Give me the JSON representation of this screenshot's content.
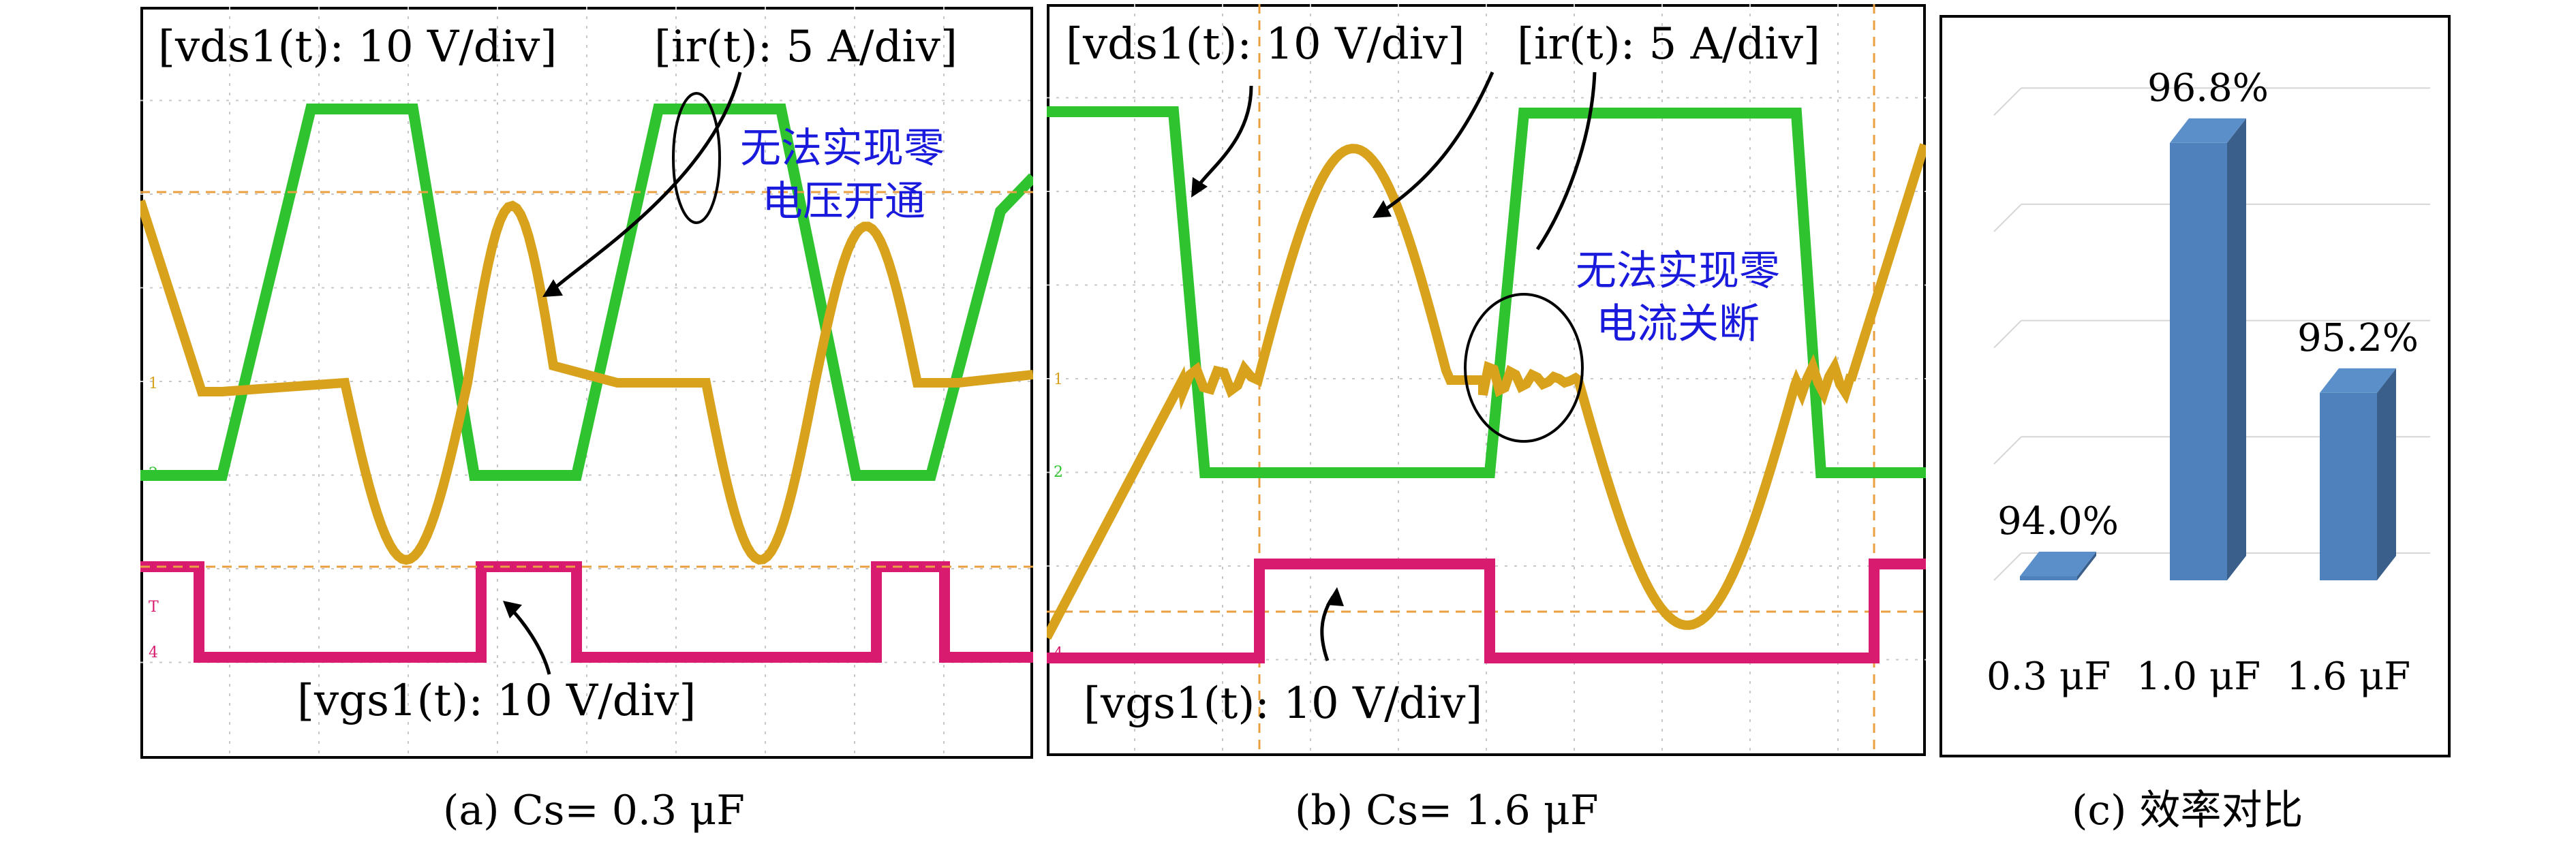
{
  "panels": {
    "a": {
      "caption": "(a) Cs= 0.3 μF",
      "labels": {
        "vds": "[vds1(t): 10 V/div]",
        "ir": "[ir(t): 5 A/div]",
        "vgs": "[vgs1(t): 10 V/div]"
      },
      "note_line1": "无法实现零",
      "note_line2": "电压开通"
    },
    "b": {
      "caption": "(b) Cs= 1.6 μF",
      "labels": {
        "vds": "[vds1(t): 10 V/div]",
        "ir": "[ir(t): 5 A/div]",
        "vgs": "[vgs1(t): 10 V/div]"
      },
      "note_line1": "无法实现零",
      "note_line2": "电流关断"
    },
    "c": {
      "caption": "(c) 效率对比"
    }
  },
  "channel_markers": [
    "1",
    "2",
    "T",
    "4"
  ],
  "colors": {
    "vds": "#2fc42f",
    "ir": "#d9a21c",
    "vgs": "#d81b6e",
    "bar_front": "#4f81bd",
    "bar_side": "#3a5f8a",
    "note": "#1a1adc"
  },
  "chart_data": {
    "type": "bar",
    "categories": [
      "0.3 μF",
      "1.0 μF",
      "1.6 μF"
    ],
    "values": [
      94.0,
      96.8,
      95.2
    ],
    "data_labels": [
      "94.0%",
      "96.8%",
      "95.2%"
    ],
    "unit": "%",
    "ylim": [
      94.0,
      97.2
    ],
    "grid": true,
    "title": ""
  }
}
